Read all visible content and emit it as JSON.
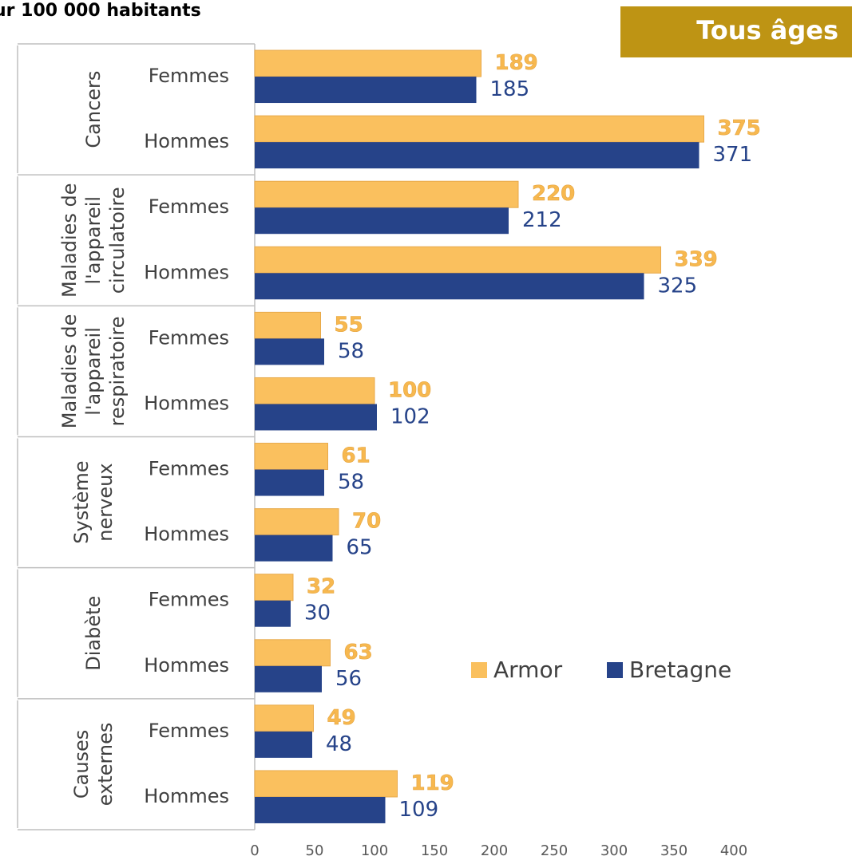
{
  "chart_data": {
    "type": "bar",
    "orientation": "horizontal",
    "title": "ur 100 000 habitants",
    "badge": "Tous âges",
    "groups": [
      {
        "lines": [
          "Cancers"
        ],
        "categories": [
          "Femmes",
          "Hommes"
        ]
      },
      {
        "lines": [
          "Maladies de",
          "l'appareil",
          "circulatoire"
        ],
        "categories": [
          "Femmes",
          "Hommes"
        ]
      },
      {
        "lines": [
          "Maladies de",
          "l'appareil",
          "respiratoire"
        ],
        "categories": [
          "Femmes",
          "Hommes"
        ]
      },
      {
        "lines": [
          "Système",
          "nerveux"
        ],
        "categories": [
          "Femmes",
          "Hommes"
        ]
      },
      {
        "lines": [
          "Diabète"
        ],
        "categories": [
          "Femmes",
          "Hommes"
        ]
      },
      {
        "lines": [
          "Causes",
          "externes"
        ],
        "categories": [
          "Femmes",
          "Hommes"
        ]
      }
    ],
    "series": [
      {
        "name": "Armor",
        "color": "#fac05e",
        "values": [
          189,
          375,
          220,
          339,
          55,
          100,
          61,
          70,
          32,
          63,
          49,
          119
        ]
      },
      {
        "name": "Bretagne",
        "color": "#264389",
        "values": [
          185,
          371,
          212,
          325,
          58,
          102,
          58,
          65,
          30,
          56,
          48,
          109
        ]
      }
    ],
    "xlim": [
      0,
      400
    ],
    "xticks": [
      0,
      50,
      100,
      150,
      200,
      250,
      300,
      350,
      400
    ]
  }
}
